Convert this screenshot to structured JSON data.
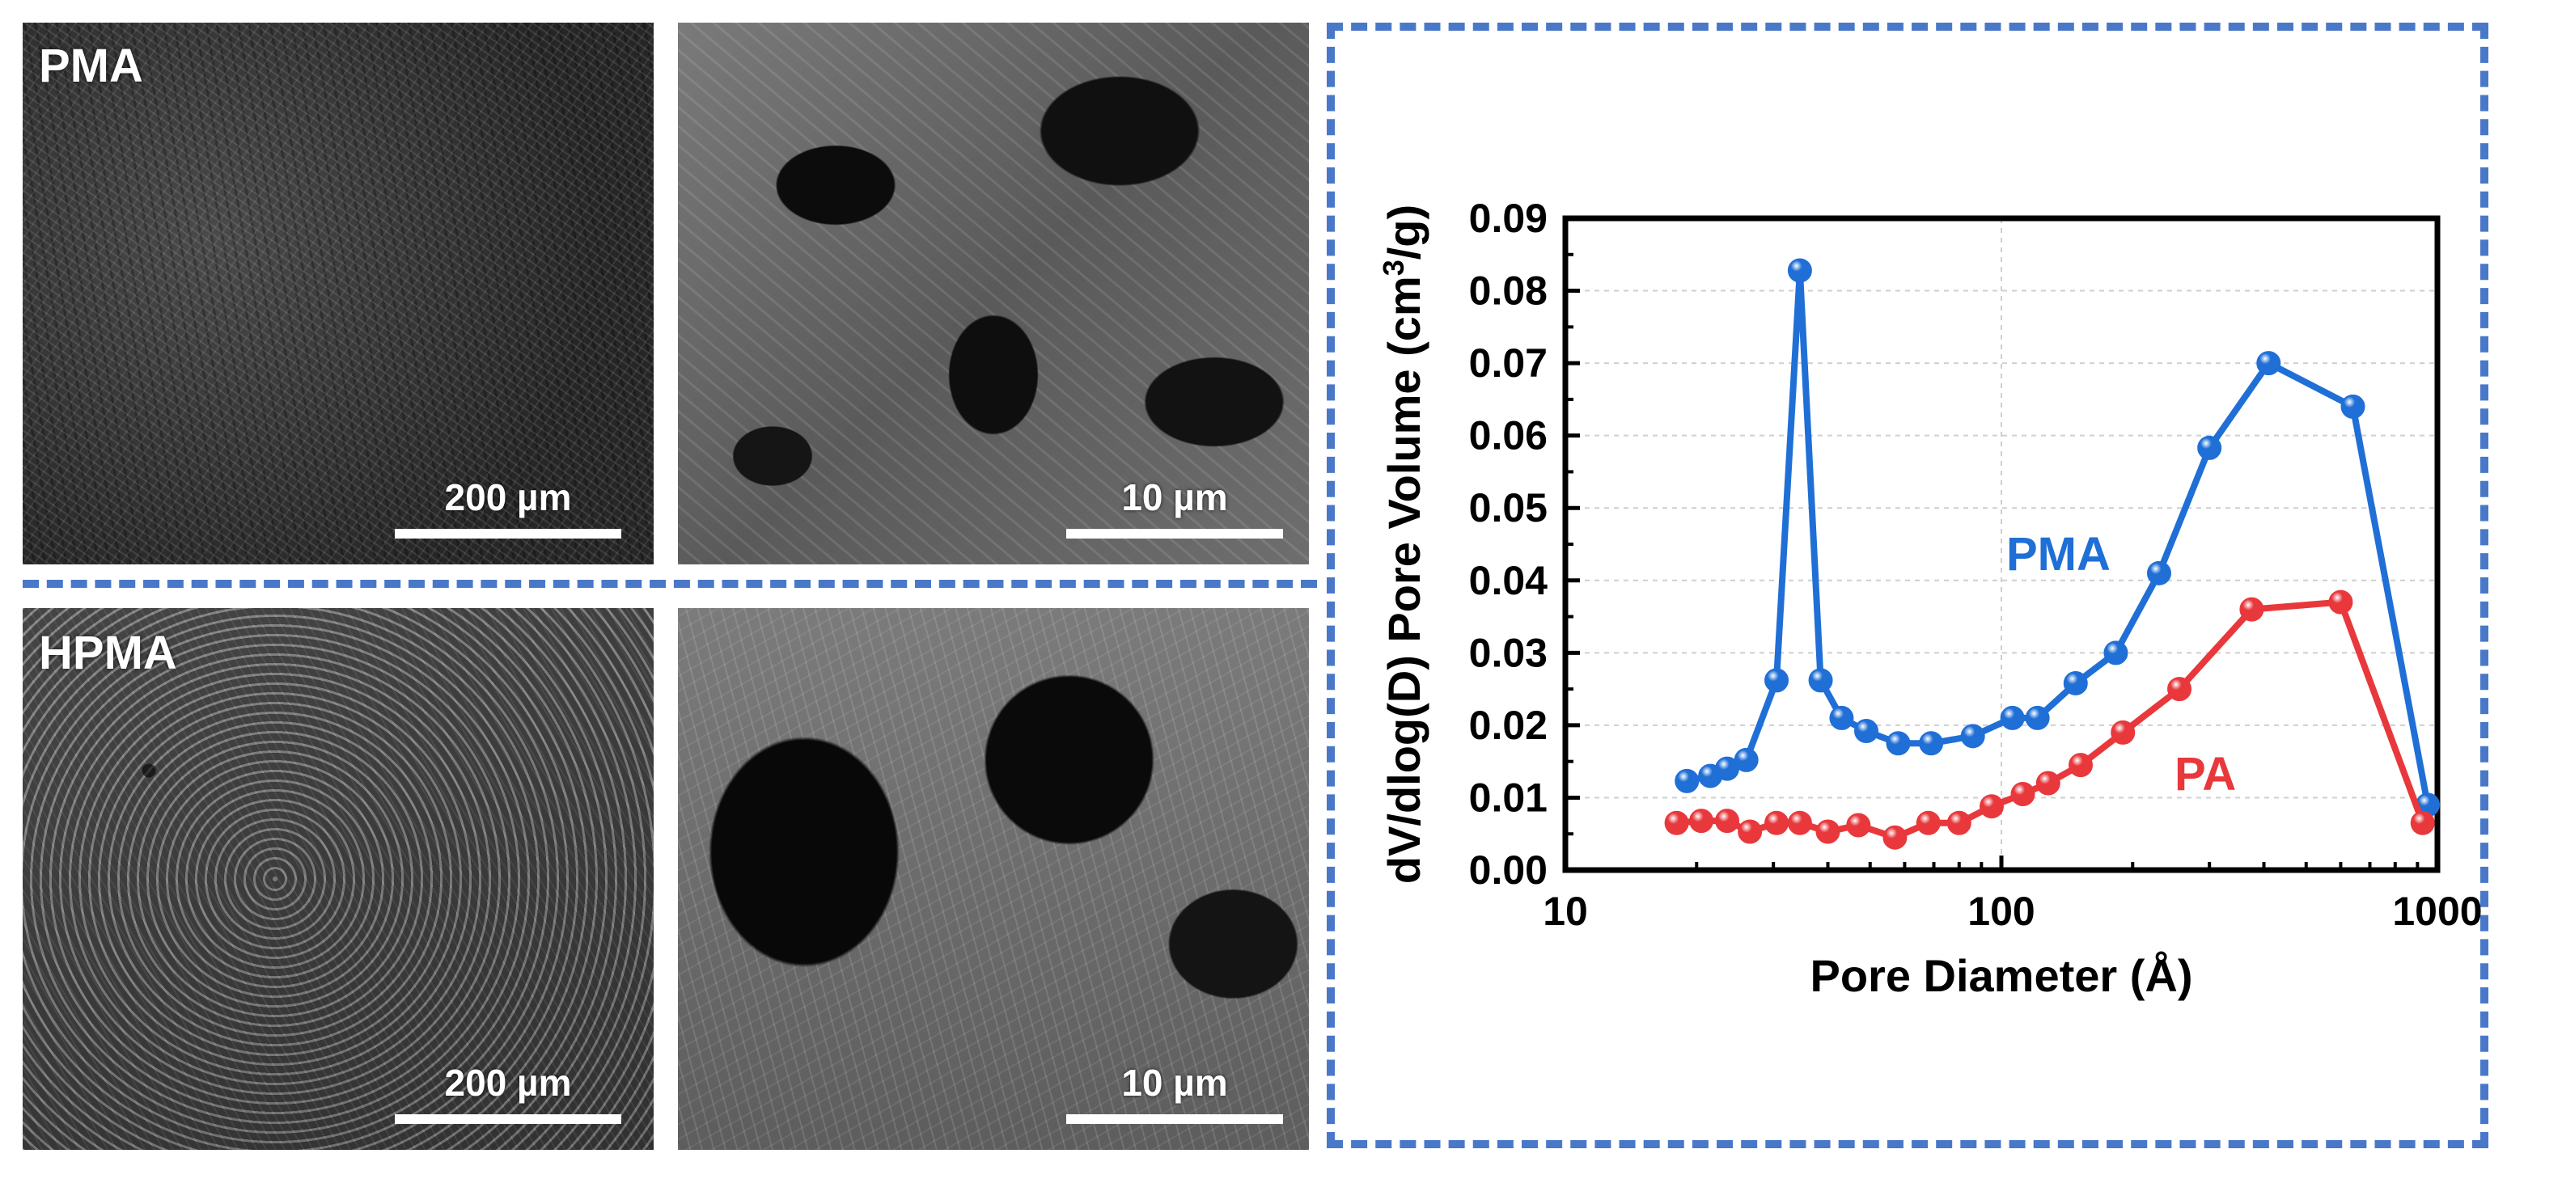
{
  "panels": {
    "top_left": {
      "label": "PMA",
      "scale": "200 µm"
    },
    "top_right": {
      "scale": "10 µm"
    },
    "bottom_left": {
      "label": "HPMA",
      "scale": "200 µm"
    },
    "bottom_right": {
      "scale": "10 µm"
    }
  },
  "colors": {
    "pma": "#1f6fd6",
    "pa": "#e8383c",
    "frame": "#4a78c8"
  },
  "chart_data": {
    "type": "line",
    "xlabel": "Pore Diameter (Å)",
    "ylabel_main": "dV/dlog(D) Pore Volume (cm",
    "ylabel_sup": "3",
    "ylabel_end": "/g)",
    "xscale": "log",
    "xlim": [
      10,
      1000
    ],
    "ylim": [
      0,
      0.09
    ],
    "grid": true,
    "xticks": [
      "10",
      "100",
      "1000"
    ],
    "yticks": [
      "0.00",
      "0.01",
      "0.02",
      "0.03",
      "0.04",
      "0.05",
      "0.06",
      "0.07",
      "0.08",
      "0.09"
    ],
    "series": [
      {
        "name": "PMA",
        "x": [
          19,
          21.5,
          23.5,
          26,
          30.5,
          34.5,
          38.5,
          43,
          49,
          58,
          69,
          86,
          106,
          121,
          148,
          183,
          230,
          300,
          410,
          640,
          950
        ],
        "y": [
          0.0123,
          0.013,
          0.014,
          0.0152,
          0.0262,
          0.0828,
          0.0262,
          0.021,
          0.0192,
          0.0175,
          0.0175,
          0.0185,
          0.021,
          0.021,
          0.0258,
          0.03,
          0.041,
          0.0583,
          0.07,
          0.064,
          0.009
        ]
      },
      {
        "name": "PA",
        "x": [
          18,
          20.5,
          23.5,
          26.5,
          30.5,
          34.5,
          40,
          47,
          57,
          68,
          80,
          95,
          112,
          128,
          152,
          190,
          256,
          375,
          600,
          925
        ],
        "y": [
          0.0065,
          0.0068,
          0.0068,
          0.0053,
          0.0065,
          0.0065,
          0.0053,
          0.0062,
          0.0045,
          0.0065,
          0.0065,
          0.0088,
          0.0105,
          0.012,
          0.0145,
          0.019,
          0.025,
          0.036,
          0.037,
          0.0065
        ]
      }
    ]
  }
}
